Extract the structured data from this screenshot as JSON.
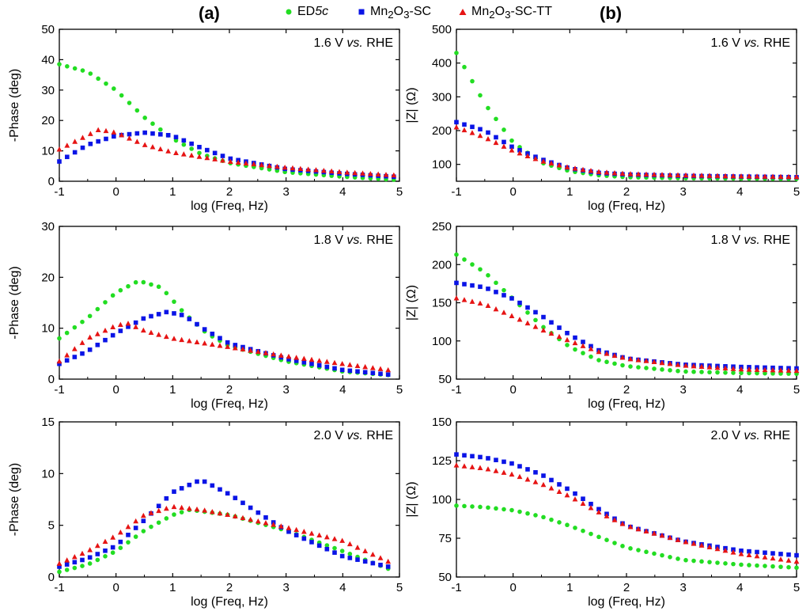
{
  "panel_labels": {
    "a": "(a)",
    "b": "(b)"
  },
  "legend": [
    {
      "name": "ED5c",
      "marker": "circle",
      "color": "#22dd22"
    },
    {
      "name": "Mn2O3-SC",
      "marker": "square",
      "color": "#0a14e6"
    },
    {
      "name": "Mn2O3-SC-TT",
      "marker": "triangle",
      "color": "#e61414"
    }
  ],
  "legend_text": {
    "ed5c_a": "ED",
    "ed5c_b": "5c",
    "mn_a": "Mn",
    "mn_sub1": "2",
    "mn_b": "O",
    "mn_sub2": "3",
    "mn_c": "-SC",
    "mntt_c": "-SC-TT"
  },
  "chart_data": [
    {
      "type": "scatter",
      "id": "a1",
      "title": "1.6 V vs. RHE",
      "title_plain": "1.6 V ",
      "title_italic": "vs.",
      "title_tail": " RHE",
      "xlabel": "log (Freq, Hz)",
      "ylabel": "-Phase (deg)",
      "xlim": [
        -1,
        5
      ],
      "ylim": [
        0,
        50
      ],
      "xticks": [
        -1,
        0,
        1,
        2,
        3,
        4,
        5
      ],
      "yticks": [
        0,
        10,
        20,
        30,
        40,
        50
      ],
      "series": [
        {
          "name": "ED5c",
          "points": [
            [
              -1,
              38.5
            ],
            [
              -0.5,
              36
            ],
            [
              0,
              30
            ],
            [
              0.5,
              21
            ],
            [
              1,
              14
            ],
            [
              1.5,
              9
            ],
            [
              2,
              6
            ],
            [
              3,
              3
            ],
            [
              4,
              1.5
            ],
            [
              4.9,
              0.5
            ]
          ]
        },
        {
          "name": "Mn2O3-SC",
          "points": [
            [
              -1,
              6.5
            ],
            [
              -0.5,
              12
            ],
            [
              0,
              15
            ],
            [
              0.5,
              16
            ],
            [
              1,
              15
            ],
            [
              1.5,
              11
            ],
            [
              2,
              7.5
            ],
            [
              3,
              4
            ],
            [
              4,
              2.5
            ],
            [
              4.9,
              1.5
            ]
          ]
        },
        {
          "name": "Mn2O3-SC-TT",
          "points": [
            [
              -1,
              10.5
            ],
            [
              -0.3,
              17
            ],
            [
              0,
              16
            ],
            [
              0.5,
              12
            ],
            [
              1,
              9.5
            ],
            [
              2,
              6.5
            ],
            [
              3,
              4.5
            ],
            [
              4,
              3
            ],
            [
              4.9,
              2
            ]
          ]
        }
      ]
    },
    {
      "type": "scatter",
      "id": "b1",
      "title": "1.6 V vs. RHE",
      "title_plain": "1.6 V ",
      "title_italic": "vs.",
      "title_tail": " RHE",
      "xlabel": "log (Freq, Hz)",
      "ylabel": "|Z| (Ω)",
      "xlim": [
        -1,
        5
      ],
      "ylim": [
        50,
        500
      ],
      "xticks": [
        -1,
        0,
        1,
        2,
        3,
        4,
        5
      ],
      "yticks": [
        100,
        200,
        300,
        400,
        500
      ],
      "series": [
        {
          "name": "ED5c",
          "points": [
            [
              -1,
              430
            ],
            [
              -0.5,
              280
            ],
            [
              0,
              165
            ],
            [
              0.5,
              105
            ],
            [
              1,
              80
            ],
            [
              1.5,
              68
            ],
            [
              2,
              62
            ],
            [
              3,
              59
            ],
            [
              4,
              58
            ],
            [
              5,
              57
            ]
          ]
        },
        {
          "name": "Mn2O3-SC",
          "points": [
            [
              -1,
              225
            ],
            [
              -0.5,
              200
            ],
            [
              0,
              150
            ],
            [
              0.5,
              115
            ],
            [
              1,
              88
            ],
            [
              1.5,
              75
            ],
            [
              2,
              70
            ],
            [
              3,
              66
            ],
            [
              4,
              64
            ],
            [
              5,
              62
            ]
          ]
        },
        {
          "name": "Mn2O3-SC-TT",
          "points": [
            [
              -1,
              210
            ],
            [
              -0.5,
              180
            ],
            [
              0,
              140
            ],
            [
              0.5,
              110
            ],
            [
              1,
              90
            ],
            [
              1.5,
              78
            ],
            [
              2,
              72
            ],
            [
              3,
              68
            ],
            [
              4,
              65
            ],
            [
              5,
              63
            ]
          ]
        }
      ]
    },
    {
      "type": "scatter",
      "id": "a2",
      "title": "1.8 V vs. RHE",
      "title_plain": "1.8 V ",
      "title_italic": "vs.",
      "title_tail": " RHE",
      "xlabel": "log (Freq, Hz)",
      "ylabel": "-Phase (deg)",
      "xlim": [
        -1,
        5
      ],
      "ylim": [
        0,
        30
      ],
      "xticks": [
        -1,
        0,
        1,
        2,
        3,
        4,
        5
      ],
      "yticks": [
        0,
        10,
        20,
        30
      ],
      "series": [
        {
          "name": "ED5c",
          "points": [
            [
              -1,
              8
            ],
            [
              -0.5,
              12
            ],
            [
              0,
              17
            ],
            [
              0.4,
              19.3
            ],
            [
              0.8,
              18
            ],
            [
              1.2,
              13
            ],
            [
              1.6,
              9
            ],
            [
              2,
              6.5
            ],
            [
              3,
              3.5
            ],
            [
              4,
              1.5
            ],
            [
              4.8,
              0.8
            ]
          ]
        },
        {
          "name": "Mn2O3-SC",
          "points": [
            [
              -1,
              3
            ],
            [
              -0.5,
              5.5
            ],
            [
              0,
              9
            ],
            [
              0.5,
              12
            ],
            [
              0.9,
              13.2
            ],
            [
              1.2,
              12.5
            ],
            [
              1.6,
              9.5
            ],
            [
              2,
              7
            ],
            [
              3,
              4
            ],
            [
              4,
              1.8
            ],
            [
              4.8,
              0.9
            ]
          ]
        },
        {
          "name": "Mn2O3-SC-TT",
          "points": [
            [
              -1,
              3.5
            ],
            [
              -0.5,
              8
            ],
            [
              0,
              10.5
            ],
            [
              0.2,
              11
            ],
            [
              0.5,
              9.5
            ],
            [
              1,
              8
            ],
            [
              2,
              6.3
            ],
            [
              3,
              4.5
            ],
            [
              4,
              3
            ],
            [
              4.8,
              1.8
            ]
          ]
        }
      ]
    },
    {
      "type": "scatter",
      "id": "b2",
      "title": "1.8 V vs. RHE",
      "title_plain": "1.8 V ",
      "title_italic": "vs.",
      "title_tail": " RHE",
      "xlabel": "log (Freq, Hz)",
      "ylabel": "|Z| (Ω)",
      "xlim": [
        -1,
        5
      ],
      "ylim": [
        50,
        250
      ],
      "xticks": [
        -1,
        0,
        1,
        2,
        3,
        4,
        5
      ],
      "yticks": [
        50,
        100,
        150,
        200,
        250
      ],
      "series": [
        {
          "name": "ED5c",
          "points": [
            [
              -1,
              213
            ],
            [
              -0.5,
              190
            ],
            [
              0,
              155
            ],
            [
              0.5,
              120
            ],
            [
              1,
              92
            ],
            [
              1.5,
              75
            ],
            [
              2,
              67
            ],
            [
              3,
              60
            ],
            [
              4,
              58
            ],
            [
              5,
              57
            ]
          ]
        },
        {
          "name": "Mn2O3-SC",
          "points": [
            [
              -1,
              176
            ],
            [
              -0.5,
              170
            ],
            [
              0,
              155
            ],
            [
              0.5,
              133
            ],
            [
              1,
              108
            ],
            [
              1.5,
              88
            ],
            [
              2,
              77
            ],
            [
              3,
              69
            ],
            [
              4,
              66
            ],
            [
              5,
              64
            ]
          ]
        },
        {
          "name": "Mn2O3-SC-TT",
          "points": [
            [
              -1,
              156
            ],
            [
              -0.5,
              148
            ],
            [
              0,
              132
            ],
            [
              0.5,
              115
            ],
            [
              1,
              100
            ],
            [
              1.5,
              86
            ],
            [
              2,
              77
            ],
            [
              3,
              68
            ],
            [
              4,
              63
            ],
            [
              5,
              61
            ]
          ]
        }
      ]
    },
    {
      "type": "scatter",
      "id": "a3",
      "title": "2.0 V vs. RHE",
      "title_plain": "2.0 V ",
      "title_italic": "vs.",
      "title_tail": " RHE",
      "xlabel": "log (Freq, Hz)",
      "ylabel": "-Phase (deg)",
      "xlim": [
        -1,
        5
      ],
      "ylim": [
        0,
        15
      ],
      "xticks": [
        -1,
        0,
        1,
        2,
        3,
        4,
        5
      ],
      "yticks": [
        0,
        5,
        10,
        15
      ],
      "series": [
        {
          "name": "ED5c",
          "points": [
            [
              -1,
              0.5
            ],
            [
              -0.5,
              1.2
            ],
            [
              0,
              2.5
            ],
            [
              0.5,
              4.5
            ],
            [
              1,
              6
            ],
            [
              1.3,
              6.5
            ],
            [
              2,
              6
            ],
            [
              3,
              4.5
            ],
            [
              4,
              2.5
            ],
            [
              4.8,
              0.8
            ]
          ]
        },
        {
          "name": "Mn2O3-SC",
          "points": [
            [
              -1,
              1
            ],
            [
              -0.5,
              1.8
            ],
            [
              0,
              3
            ],
            [
              0.5,
              5.5
            ],
            [
              1,
              8.2
            ],
            [
              1.5,
              9.4
            ],
            [
              2,
              8
            ],
            [
              3,
              4.5
            ],
            [
              4,
              2
            ],
            [
              4.8,
              1
            ]
          ]
        },
        {
          "name": "Mn2O3-SC-TT",
          "points": [
            [
              -1,
              1.3
            ],
            [
              -0.5,
              2.5
            ],
            [
              0,
              4
            ],
            [
              0.5,
              6
            ],
            [
              1,
              6.8
            ],
            [
              1.5,
              6.5
            ],
            [
              2,
              6
            ],
            [
              3,
              4.8
            ],
            [
              4,
              3.5
            ],
            [
              4.8,
              1.5
            ]
          ]
        }
      ]
    },
    {
      "type": "scatter",
      "id": "b3",
      "title": "2.0 V vs. RHE",
      "title_plain": "2.0 V ",
      "title_italic": "vs.",
      "title_tail": " RHE",
      "xlabel": "log (Freq, Hz)",
      "ylabel": "|Z|  (Ω)",
      "xlim": [
        -1,
        5
      ],
      "ylim": [
        50,
        150
      ],
      "xticks": [
        -1,
        0,
        1,
        2,
        3,
        4,
        5
      ],
      "yticks": [
        50,
        75,
        100,
        125,
        150
      ],
      "series": [
        {
          "name": "ED5c",
          "points": [
            [
              -1,
              96
            ],
            [
              -0.5,
              95
            ],
            [
              0,
              93
            ],
            [
              0.5,
              89
            ],
            [
              1,
              83
            ],
            [
              1.5,
              76
            ],
            [
              2,
              69
            ],
            [
              3,
              61
            ],
            [
              4,
              58
            ],
            [
              5,
              56
            ]
          ]
        },
        {
          "name": "Mn2O3-SC",
          "points": [
            [
              -1,
              129
            ],
            [
              -0.5,
              127
            ],
            [
              0,
              123
            ],
            [
              0.5,
              116
            ],
            [
              1,
              106
            ],
            [
              1.5,
              94
            ],
            [
              2,
              83
            ],
            [
              3,
              73
            ],
            [
              4,
              67
            ],
            [
              5,
              64
            ]
          ]
        },
        {
          "name": "Mn2O3-SC-TT",
          "points": [
            [
              -1,
              122
            ],
            [
              -0.5,
              120
            ],
            [
              0,
              116
            ],
            [
              0.5,
              110
            ],
            [
              1,
              102
            ],
            [
              1.5,
              92
            ],
            [
              2,
              83
            ],
            [
              3,
              73
            ],
            [
              4,
              65
            ],
            [
              5,
              60
            ]
          ]
        }
      ]
    }
  ]
}
